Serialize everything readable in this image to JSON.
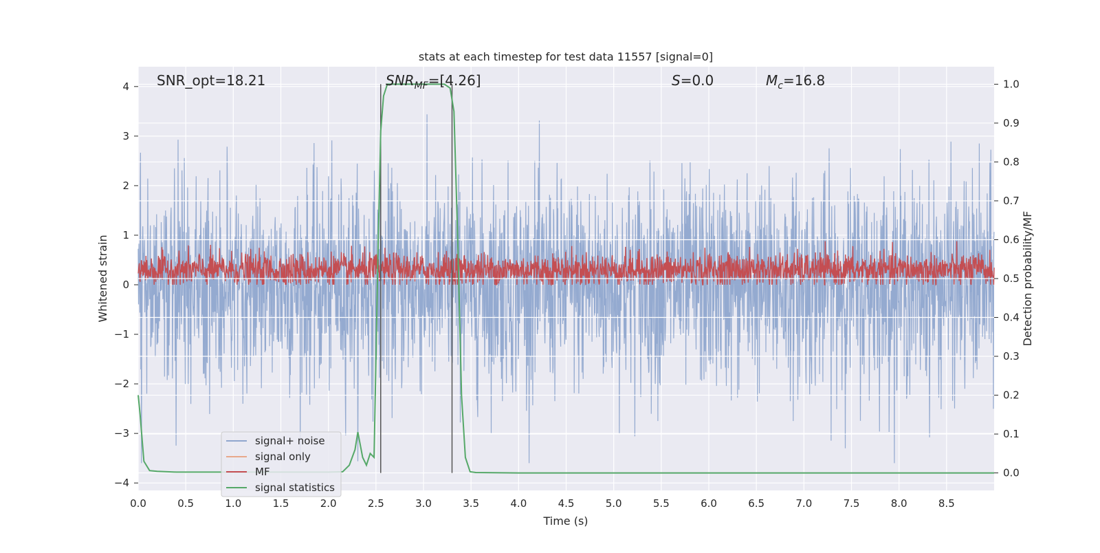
{
  "chart_data": {
    "type": "line",
    "title": "stats at each timestep for test data 11557 [signal=0]",
    "xlabel": "Time (s)",
    "ylabel_left": "Whitened strain",
    "ylabel_right": "Detection probability/MF",
    "xlim": [
      0.0,
      9.0
    ],
    "ylim_left": [
      -4.15,
      4.4
    ],
    "ylim_right": [
      -0.045,
      1.045
    ],
    "x_ticks": [
      "0.0",
      "0.5",
      "1.0",
      "1.5",
      "2.0",
      "2.5",
      "3.0",
      "3.5",
      "4.0",
      "4.5",
      "5.0",
      "5.5",
      "6.0",
      "6.5",
      "7.0",
      "7.5",
      "8.0",
      "8.5"
    ],
    "y_left_ticks": [
      "4",
      "3",
      "2",
      "1",
      "0",
      "−1",
      "−2",
      "−3",
      "−4"
    ],
    "y_right_ticks": [
      "1.0",
      "0.9",
      "0.8",
      "0.7",
      "0.6",
      "0.5",
      "0.4",
      "0.3",
      "0.2",
      "0.1",
      "0.0"
    ],
    "grid": true,
    "legend_position": "lower-left",
    "annotations": {
      "snr_opt": "SNR_opt=18.21",
      "snr_mf_label": "SNR",
      "snr_mf_sub": "MF",
      "snr_mf_value": "=[4.26]",
      "s_label": "S",
      "s_value": "=0.0",
      "mc_label": "M",
      "mc_sub": "c",
      "mc_value": "=16.8"
    },
    "vertical_lines_x": [
      2.55,
      3.3
    ],
    "series": [
      {
        "name": "signal+ noise",
        "color": "#8fa6ce",
        "description_range_left_axis": [
          -3.6,
          4.0
        ]
      },
      {
        "name": "signal only",
        "color": "#e8a88a",
        "values": []
      },
      {
        "name": "MF",
        "color": "#c44e52",
        "range_left_axis": [
          0.0,
          0.9
        ]
      },
      {
        "name": "signal statistics",
        "color": "#55a868",
        "x": [
          0.0,
          0.02,
          0.06,
          0.12,
          0.2,
          0.4,
          0.8,
          1.5,
          2.0,
          2.15,
          2.22,
          2.28,
          2.31,
          2.36,
          2.4,
          2.44,
          2.48,
          2.52,
          2.55,
          2.58,
          2.62,
          2.66,
          3.0,
          3.22,
          3.28,
          3.32,
          3.36,
          3.4,
          3.44,
          3.49,
          3.55,
          4.0,
          9.0
        ],
        "values": [
          0.2,
          0.15,
          0.03,
          0.006,
          0.004,
          0.002,
          0.002,
          0.002,
          0.002,
          0.003,
          0.02,
          0.06,
          0.105,
          0.04,
          0.02,
          0.05,
          0.04,
          0.55,
          0.88,
          0.97,
          1.0,
          1.0,
          1.0,
          1.0,
          0.99,
          0.93,
          0.6,
          0.2,
          0.04,
          0.003,
          0.001,
          0.0,
          0.0
        ]
      }
    ]
  }
}
